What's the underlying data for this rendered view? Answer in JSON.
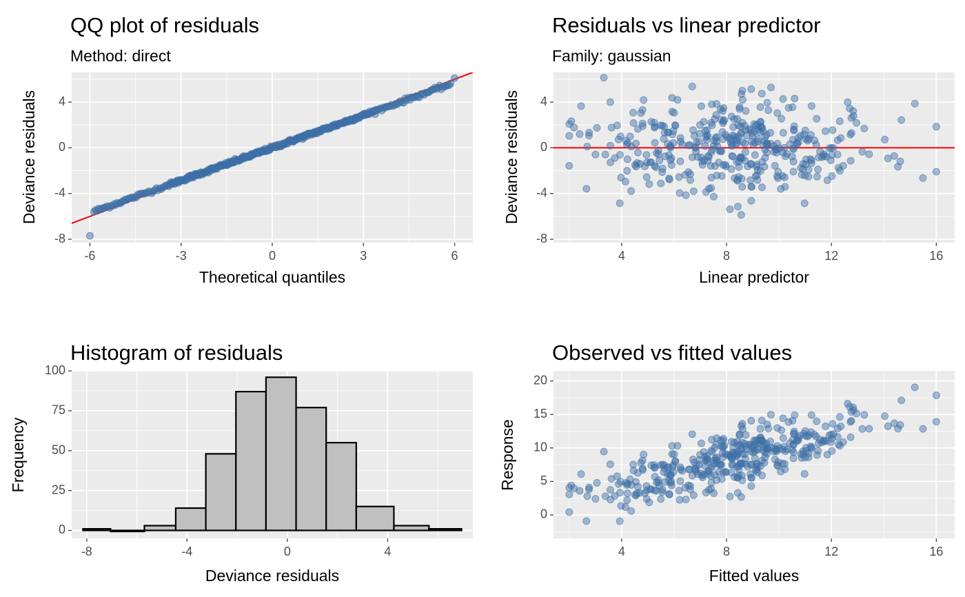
{
  "chart_data": [
    {
      "type": "scatter",
      "title": "QQ plot of residuals",
      "subtitle": "Method: direct",
      "xlabel": "Theoretical quantiles",
      "ylabel": "Deviance residuals",
      "xlim": [
        -6.6,
        6.6
      ],
      "ylim": [
        -8.3,
        6.6
      ],
      "xticks": [
        -6,
        -3,
        0,
        3,
        6
      ],
      "xtick_labels": [
        "-6",
        "-3",
        "0",
        "3",
        "6"
      ],
      "yticks": [
        -8,
        -4,
        0,
        4
      ],
      "ytick_labels": [
        "-8",
        "-4",
        "0",
        "4"
      ],
      "grid": true,
      "reference_line": {
        "intercept": 0,
        "slope": 1.0,
        "color": "#ff0000"
      },
      "point_color": "#3d6fa6",
      "n_points": 400,
      "extreme_points": [
        [
          -6.0,
          -7.7
        ],
        [
          6.0,
          6.1
        ]
      ]
    },
    {
      "type": "scatter",
      "title": "Residuals vs linear predictor",
      "subtitle": "Family: gaussian",
      "xlabel": "Linear predictor",
      "ylabel": "Deviance residuals",
      "xlim": [
        1.4,
        16.7
      ],
      "ylim": [
        -8.3,
        6.6
      ],
      "xticks": [
        4,
        8,
        12,
        16
      ],
      "xtick_labels": [
        "4",
        "8",
        "12",
        "16"
      ],
      "yticks": [
        -8,
        -4,
        0,
        4
      ],
      "ytick_labels": [
        "-8",
        "-4",
        "0",
        "4"
      ],
      "grid": true,
      "hline": {
        "y": 0,
        "color": "#ff0000"
      },
      "point_color": "#3d6fa6",
      "n_points": 400
    },
    {
      "type": "bar",
      "title": "Histogram of residuals",
      "subtitle": "",
      "xlabel": "Deviance residuals",
      "ylabel": "Frequency",
      "xlim": [
        -8.6,
        7.4
      ],
      "ylim": [
        -5,
        100
      ],
      "xticks": [
        -8,
        -4,
        0,
        4
      ],
      "xtick_labels": [
        "-8",
        "-4",
        "0",
        "4"
      ],
      "yticks": [
        0,
        25,
        50,
        75,
        100
      ],
      "ytick_labels": [
        "0",
        "25",
        "50",
        "75",
        "100"
      ],
      "grid": true,
      "bar_fill": "#c0c0c0",
      "bar_stroke": "#000000",
      "bins": [
        {
          "x0": -8.15,
          "x1": -7.05,
          "value": 1
        },
        {
          "x0": -7.05,
          "x1": -5.7,
          "value": 0
        },
        {
          "x0": -5.7,
          "x1": -4.45,
          "value": 3
        },
        {
          "x0": -4.45,
          "x1": -3.25,
          "value": 14
        },
        {
          "x0": -3.25,
          "x1": -2.05,
          "value": 48
        },
        {
          "x0": -2.05,
          "x1": -0.85,
          "value": 87
        },
        {
          "x0": -0.85,
          "x1": 0.35,
          "value": 96
        },
        {
          "x0": 0.35,
          "x1": 1.55,
          "value": 77
        },
        {
          "x0": 1.55,
          "x1": 2.75,
          "value": 55
        },
        {
          "x0": 2.75,
          "x1": 4.25,
          "value": 15
        },
        {
          "x0": 4.25,
          "x1": 5.65,
          "value": 3
        },
        {
          "x0": 5.65,
          "x1": 6.95,
          "value": 1
        }
      ]
    },
    {
      "type": "scatter",
      "title": "Observed vs fitted values",
      "subtitle": "",
      "xlabel": "Fitted values",
      "ylabel": "Response",
      "xlim": [
        1.4,
        16.7
      ],
      "ylim": [
        -3.5,
        21.5
      ],
      "xticks": [
        4,
        8,
        12,
        16
      ],
      "xtick_labels": [
        "4",
        "8",
        "12",
        "16"
      ],
      "yticks": [
        0,
        5,
        10,
        15,
        20
      ],
      "ytick_labels": [
        "0",
        "5",
        "10",
        "15",
        "20"
      ],
      "grid": true,
      "point_color": "#3d6fa6",
      "n_points": 400
    }
  ]
}
